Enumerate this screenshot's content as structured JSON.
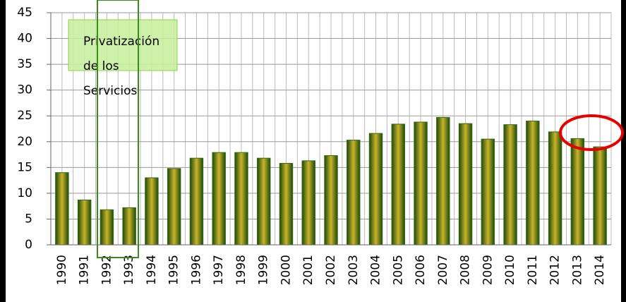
{
  "chart_data": {
    "type": "bar",
    "categories": [
      "1990",
      "1991",
      "1992",
      "1993",
      "1994",
      "1995",
      "1996",
      "1997",
      "1998",
      "1999",
      "2000",
      "2001",
      "2002",
      "2003",
      "2004",
      "2005",
      "2006",
      "2007",
      "2008",
      "2009",
      "2010",
      "2011",
      "2012",
      "2013",
      "2014"
    ],
    "values": [
      14,
      8.7,
      6.8,
      7.2,
      13,
      14.8,
      16.8,
      17.9,
      17.9,
      16.8,
      15.8,
      16.3,
      17.3,
      20.3,
      21.6,
      23.4,
      23.8,
      24.7,
      23.5,
      20.5,
      23.3,
      24,
      21.9,
      20.6,
      19
    ],
    "color": "#2f6b12",
    "ylim": [
      0,
      45
    ],
    "yticks": [
      0,
      5,
      10,
      15,
      20,
      25,
      30,
      35,
      40,
      45
    ],
    "grid": true,
    "annotation": [
      "Privatización",
      "de los",
      "Servicios"
    ]
  }
}
